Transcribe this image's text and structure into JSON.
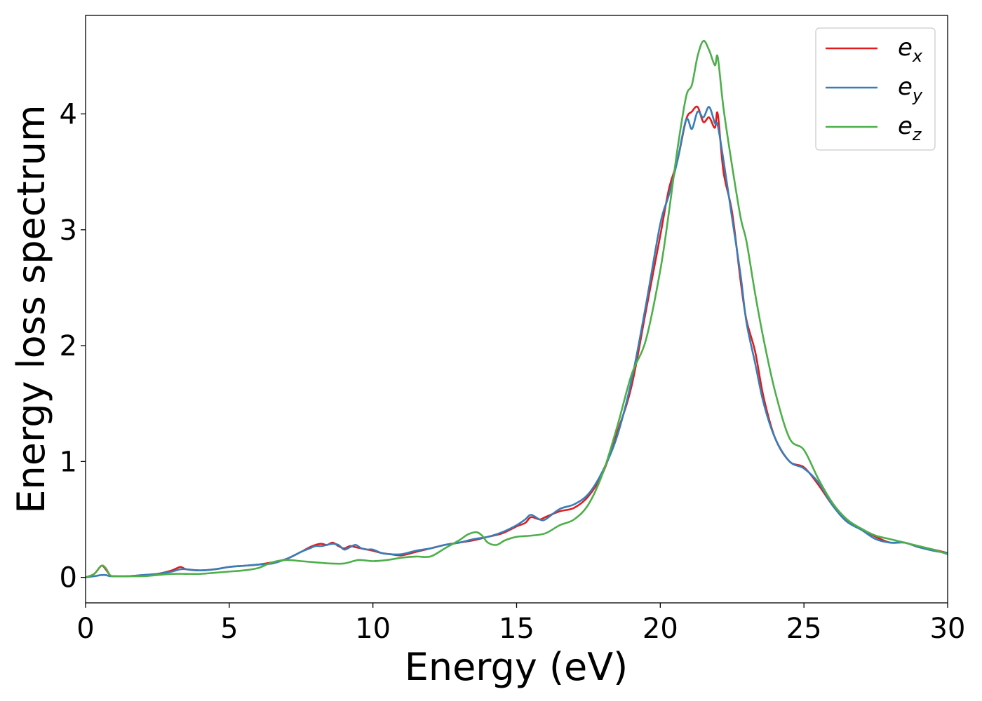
{
  "chart_data": {
    "type": "line",
    "xlabel": "Energy (eV)",
    "ylabel": "Energy loss spectrum",
    "xlim": [
      0,
      30
    ],
    "ylim": [
      -0.22,
      4.85
    ],
    "xticks": [
      0,
      5,
      10,
      15,
      20,
      25,
      30
    ],
    "yticks": [
      0,
      1,
      2,
      3,
      4
    ],
    "grid": false,
    "legend_position": "top-right",
    "series": [
      {
        "name": "e_x",
        "label_main": "e",
        "label_sub": "x",
        "color": "#e41a1c",
        "x": [
          0,
          0.3,
          0.55,
          0.7,
          0.85,
          1.0,
          1.5,
          2.0,
          2.5,
          3.0,
          3.3,
          3.5,
          4.0,
          4.5,
          5.0,
          5.5,
          6.0,
          6.5,
          7.0,
          7.5,
          7.8,
          8.0,
          8.2,
          8.4,
          8.6,
          8.8,
          9.0,
          9.2,
          9.4,
          9.6,
          9.8,
          10.0,
          10.3,
          10.6,
          11.0,
          11.5,
          12.0,
          12.5,
          13.0,
          13.5,
          14.0,
          14.5,
          15.0,
          15.3,
          15.5,
          15.8,
          16.0,
          16.5,
          17.0,
          17.5,
          18.0,
          18.5,
          19.0,
          19.5,
          20.0,
          20.3,
          20.6,
          20.9,
          21.1,
          21.3,
          21.5,
          21.7,
          21.9,
          22.0,
          22.2,
          22.5,
          22.8,
          23.0,
          23.3,
          23.6,
          24.0,
          24.5,
          25.0,
          25.5,
          26.0,
          26.5,
          27.0,
          27.5,
          28.0,
          28.5,
          29.0,
          29.5,
          30.0
        ],
        "y": [
          0.0,
          0.03,
          0.1,
          0.07,
          0.02,
          0.01,
          0.01,
          0.02,
          0.03,
          0.06,
          0.09,
          0.07,
          0.06,
          0.07,
          0.09,
          0.1,
          0.11,
          0.13,
          0.16,
          0.22,
          0.26,
          0.28,
          0.29,
          0.28,
          0.3,
          0.27,
          0.25,
          0.27,
          0.26,
          0.25,
          0.24,
          0.23,
          0.21,
          0.2,
          0.19,
          0.22,
          0.25,
          0.28,
          0.3,
          0.32,
          0.35,
          0.38,
          0.44,
          0.47,
          0.52,
          0.5,
          0.52,
          0.57,
          0.6,
          0.7,
          0.9,
          1.25,
          1.65,
          2.3,
          2.95,
          3.35,
          3.6,
          3.95,
          4.02,
          4.06,
          3.93,
          3.97,
          3.88,
          4.0,
          3.5,
          3.15,
          2.55,
          2.22,
          1.95,
          1.55,
          1.2,
          1.0,
          0.95,
          0.8,
          0.62,
          0.48,
          0.42,
          0.35,
          0.3,
          0.3,
          0.26,
          0.24,
          0.21
        ]
      },
      {
        "name": "e_y",
        "label_main": "e",
        "label_sub": "y",
        "color": "#377eb8",
        "x": [
          0,
          0.3,
          0.55,
          0.7,
          0.85,
          1.0,
          1.5,
          2.0,
          2.5,
          3.0,
          3.3,
          3.5,
          4.0,
          4.5,
          5.0,
          5.5,
          6.0,
          6.5,
          7.0,
          7.5,
          7.8,
          8.0,
          8.2,
          8.4,
          8.6,
          8.8,
          9.0,
          9.2,
          9.4,
          9.6,
          9.8,
          10.0,
          10.3,
          10.6,
          11.0,
          11.5,
          12.0,
          12.5,
          13.0,
          13.5,
          14.0,
          14.5,
          15.0,
          15.3,
          15.5,
          15.8,
          16.0,
          16.5,
          17.0,
          17.5,
          18.0,
          18.5,
          19.0,
          19.5,
          20.0,
          20.3,
          20.6,
          20.9,
          21.1,
          21.3,
          21.5,
          21.7,
          21.9,
          22.0,
          22.2,
          22.5,
          22.8,
          23.0,
          23.3,
          23.6,
          24.0,
          24.5,
          25.0,
          25.5,
          26.0,
          26.5,
          27.0,
          27.5,
          28.0,
          28.5,
          29.0,
          29.5,
          30.0
        ],
        "y": [
          0.0,
          0.01,
          0.02,
          0.02,
          0.01,
          0.01,
          0.01,
          0.02,
          0.03,
          0.05,
          0.07,
          0.07,
          0.06,
          0.07,
          0.09,
          0.1,
          0.11,
          0.12,
          0.16,
          0.22,
          0.25,
          0.27,
          0.27,
          0.28,
          0.29,
          0.28,
          0.24,
          0.26,
          0.28,
          0.25,
          0.24,
          0.24,
          0.21,
          0.2,
          0.2,
          0.23,
          0.25,
          0.28,
          0.3,
          0.33,
          0.35,
          0.39,
          0.45,
          0.5,
          0.54,
          0.5,
          0.5,
          0.59,
          0.63,
          0.72,
          0.92,
          1.22,
          1.7,
          2.35,
          3.05,
          3.3,
          3.6,
          3.95,
          3.87,
          4.02,
          3.97,
          4.06,
          3.92,
          3.9,
          3.6,
          3.1,
          2.6,
          2.2,
          1.85,
          1.5,
          1.2,
          1.0,
          0.94,
          0.82,
          0.62,
          0.48,
          0.41,
          0.33,
          0.3,
          0.3,
          0.26,
          0.23,
          0.21
        ]
      },
      {
        "name": "e_z",
        "label_main": "e",
        "label_sub": "z",
        "color": "#4daf4a",
        "x": [
          0,
          0.3,
          0.55,
          0.7,
          0.85,
          1.0,
          1.5,
          2.0,
          2.5,
          3.0,
          3.5,
          4.0,
          4.5,
          5.0,
          5.5,
          6.0,
          6.5,
          7.0,
          7.5,
          8.0,
          8.5,
          9.0,
          9.5,
          10.0,
          10.5,
          11.0,
          11.5,
          12.0,
          12.5,
          13.0,
          13.3,
          13.6,
          13.8,
          14.0,
          14.3,
          14.6,
          15.0,
          15.5,
          16.0,
          16.5,
          17.0,
          17.5,
          18.0,
          18.5,
          19.0,
          19.5,
          20.0,
          20.3,
          20.6,
          20.9,
          21.1,
          21.3,
          21.5,
          21.7,
          21.9,
          22.0,
          22.2,
          22.5,
          22.8,
          23.0,
          23.3,
          23.6,
          24.0,
          24.5,
          25.0,
          25.5,
          26.0,
          26.5,
          27.0,
          27.5,
          28.0,
          28.5,
          29.0,
          29.5,
          30.0
        ],
        "y": [
          0.0,
          0.03,
          0.1,
          0.08,
          0.02,
          0.01,
          0.01,
          0.01,
          0.02,
          0.03,
          0.03,
          0.03,
          0.04,
          0.05,
          0.06,
          0.08,
          0.13,
          0.15,
          0.14,
          0.13,
          0.12,
          0.12,
          0.15,
          0.14,
          0.15,
          0.17,
          0.18,
          0.18,
          0.25,
          0.32,
          0.37,
          0.39,
          0.36,
          0.3,
          0.28,
          0.32,
          0.35,
          0.36,
          0.38,
          0.45,
          0.5,
          0.63,
          0.9,
          1.3,
          1.75,
          2.05,
          2.65,
          3.15,
          3.7,
          4.15,
          4.25,
          4.5,
          4.63,
          4.55,
          4.42,
          4.49,
          4.05,
          3.55,
          3.1,
          2.9,
          2.45,
          2.05,
          1.6,
          1.2,
          1.1,
          0.85,
          0.64,
          0.5,
          0.42,
          0.36,
          0.33,
          0.3,
          0.27,
          0.24,
          0.2
        ]
      }
    ]
  }
}
